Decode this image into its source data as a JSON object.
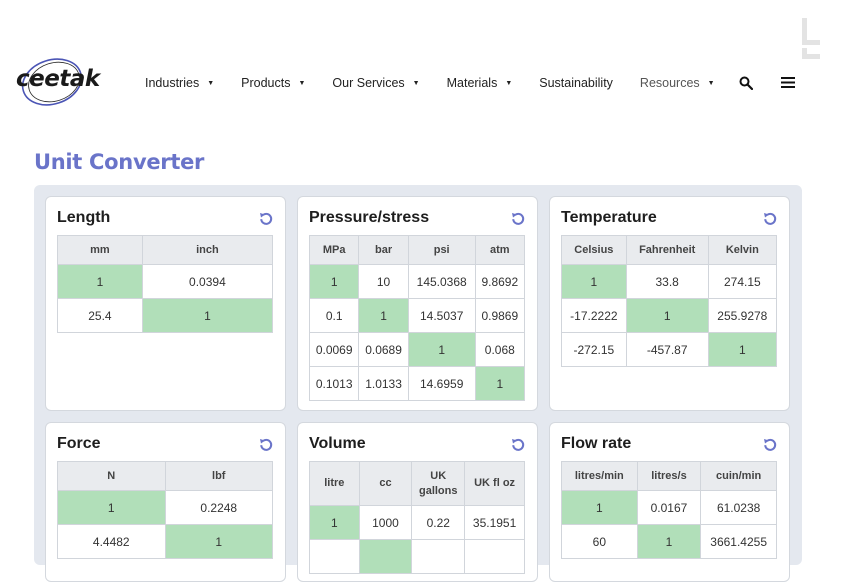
{
  "brand": {
    "logo_text": "ceetak"
  },
  "nav": {
    "items": [
      {
        "label": "Industries",
        "has_dropdown": true
      },
      {
        "label": "Products",
        "has_dropdown": true
      },
      {
        "label": "Our Services",
        "has_dropdown": true
      },
      {
        "label": "Materials",
        "has_dropdown": true
      },
      {
        "label": "Sustainability",
        "has_dropdown": false
      },
      {
        "label": "Resources",
        "has_dropdown": true
      }
    ],
    "search_icon": "search-icon",
    "menu_icon": "hamburger-menu-icon"
  },
  "page": {
    "title": "Unit Converter"
  },
  "colors": {
    "title": "#6a74c9",
    "highlight": "#b1dfb9",
    "panel_bg": "#e4e8ef",
    "reset_icon": "#6a74c9"
  },
  "converters": [
    {
      "title": "Length",
      "headers": [
        "mm",
        "inch"
      ],
      "rows": [
        [
          "1",
          "0.0394"
        ],
        [
          "25.4",
          "1"
        ]
      ]
    },
    {
      "title": "Pressure/stress",
      "headers": [
        "MPa",
        "bar",
        "psi",
        "atm"
      ],
      "rows": [
        [
          "1",
          "10",
          "145.0368",
          "9.8692"
        ],
        [
          "0.1",
          "1",
          "14.5037",
          "0.9869"
        ],
        [
          "0.0069",
          "0.0689",
          "1",
          "0.068"
        ],
        [
          "0.1013",
          "1.0133",
          "14.6959",
          "1"
        ]
      ]
    },
    {
      "title": "Temperature",
      "headers": [
        "Celsius",
        "Fahrenheit",
        "Kelvin"
      ],
      "rows": [
        [
          "1",
          "33.8",
          "274.15"
        ],
        [
          "-17.2222",
          "1",
          "255.9278"
        ],
        [
          "-272.15",
          "-457.87",
          "1"
        ]
      ]
    },
    {
      "title": "Force",
      "headers": [
        "N",
        "lbf"
      ],
      "rows": [
        [
          "1",
          "0.2248"
        ],
        [
          "4.4482",
          "1"
        ]
      ]
    },
    {
      "title": "Volume",
      "headers": [
        "litre",
        "cc",
        "UK gallons",
        "UK fl oz"
      ],
      "rows": [
        [
          "1",
          "1000",
          "0.22",
          "35.1951"
        ],
        [
          "",
          "",
          "",
          ""
        ]
      ]
    },
    {
      "title": "Flow rate",
      "headers": [
        "litres/min",
        "litres/s",
        "cuin/min"
      ],
      "rows": [
        [
          "1",
          "0.0167",
          "61.0238"
        ],
        [
          "60",
          "1",
          "3661.4255"
        ]
      ]
    }
  ]
}
